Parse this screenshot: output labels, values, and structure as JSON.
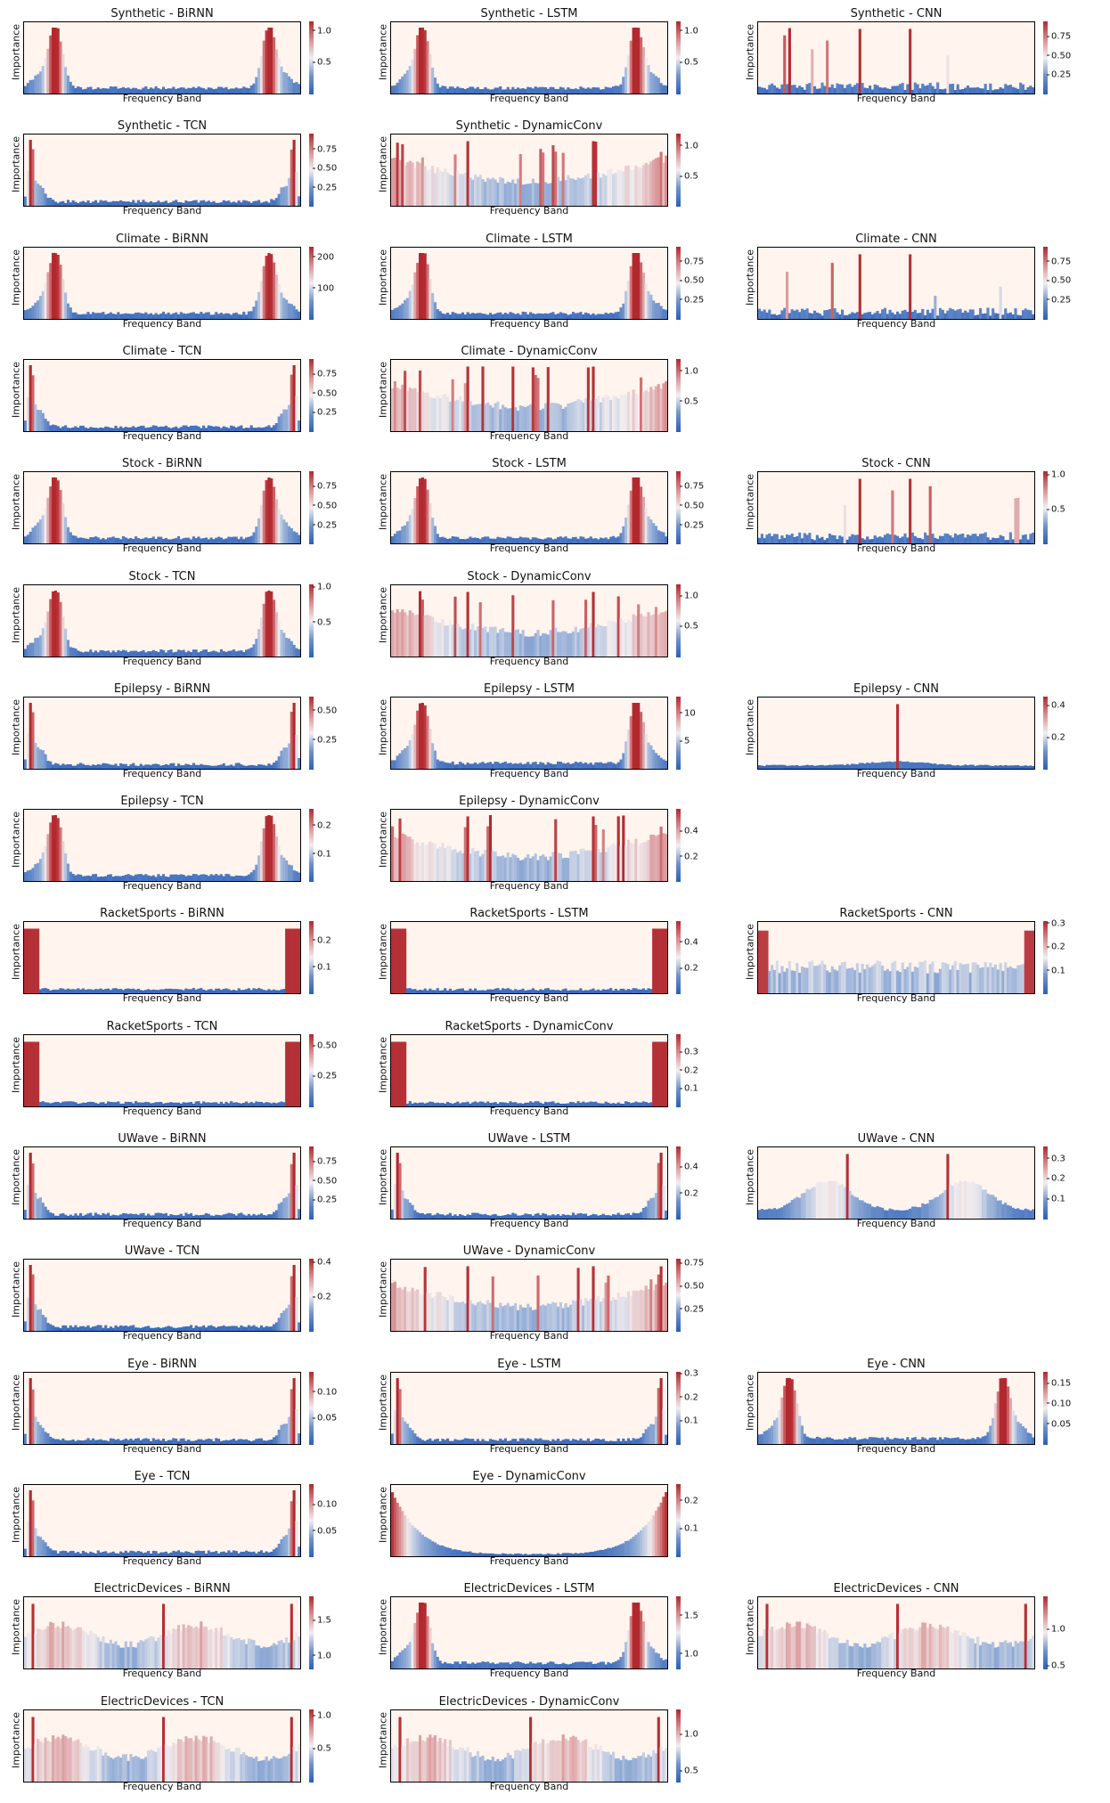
{
  "chart_data": [
    {
      "title": "Synthetic - BiRNN",
      "ylabel": "Importance",
      "xlabel": "Frequency Band",
      "type": "bar",
      "shape": "twin",
      "colorbar_ticks": [
        "1.0",
        "0.5"
      ],
      "tick_values": [
        1.0,
        0.5
      ],
      "cmax": 1.15
    },
    {
      "title": "Synthetic - LSTM",
      "ylabel": "Importance",
      "xlabel": "Frequency Band",
      "type": "bar",
      "shape": "twin",
      "colorbar_ticks": [
        "1.0",
        "0.5"
      ],
      "tick_values": [
        1.0,
        0.5
      ],
      "cmax": 1.15
    },
    {
      "title": "Synthetic - CNN",
      "ylabel": "Importance",
      "xlabel": "Frequency Band",
      "type": "bar",
      "shape": "spikes",
      "colorbar_ticks": [
        "0.75",
        "0.50",
        "0.25"
      ],
      "tick_values": [
        0.75,
        0.5,
        0.25
      ],
      "cmax": 0.95
    },
    {
      "title": "Synthetic - TCN",
      "ylabel": "Importance",
      "xlabel": "Frequency Band",
      "type": "bar",
      "shape": "edges",
      "colorbar_ticks": [
        "0.75",
        "0.50",
        "0.25"
      ],
      "tick_values": [
        0.75,
        0.5,
        0.25
      ],
      "cmax": 0.95
    },
    {
      "title": "Synthetic - DynamicConv",
      "ylabel": "Importance",
      "xlabel": "Frequency Band",
      "type": "bar",
      "shape": "bowl",
      "colorbar_ticks": [
        "1.0",
        "0.5"
      ],
      "tick_values": [
        1.0,
        0.5
      ],
      "cmax": 1.2
    },
    null,
    {
      "title": "Climate - BiRNN",
      "ylabel": "Importance",
      "xlabel": "Frequency Band",
      "type": "bar",
      "shape": "twin",
      "colorbar_ticks": [
        "200",
        "100"
      ],
      "tick_values": [
        200,
        100
      ],
      "cmax": 235
    },
    {
      "title": "Climate - LSTM",
      "ylabel": "Importance",
      "xlabel": "Frequency Band",
      "type": "bar",
      "shape": "twin",
      "colorbar_ticks": [
        "0.75",
        "0.50",
        "0.25"
      ],
      "tick_values": [
        0.75,
        0.5,
        0.25
      ],
      "cmax": 0.95
    },
    {
      "title": "Climate - CNN",
      "ylabel": "Importance",
      "xlabel": "Frequency Band",
      "type": "bar",
      "shape": "spikes",
      "colorbar_ticks": [
        "0.75",
        "0.50",
        "0.25"
      ],
      "tick_values": [
        0.75,
        0.5,
        0.25
      ],
      "cmax": 0.95
    },
    {
      "title": "Climate - TCN",
      "ylabel": "Importance",
      "xlabel": "Frequency Band",
      "type": "bar",
      "shape": "edges",
      "colorbar_ticks": [
        "0.75",
        "0.50",
        "0.25"
      ],
      "tick_values": [
        0.75,
        0.5,
        0.25
      ],
      "cmax": 0.95
    },
    {
      "title": "Climate - DynamicConv",
      "ylabel": "Importance",
      "xlabel": "Frequency Band",
      "type": "bar",
      "shape": "bowl",
      "colorbar_ticks": [
        "1.0",
        "0.5"
      ],
      "tick_values": [
        1.0,
        0.5
      ],
      "cmax": 1.2
    },
    null,
    {
      "title": "Stock - BiRNN",
      "ylabel": "Importance",
      "xlabel": "Frequency Band",
      "type": "bar",
      "shape": "twin",
      "colorbar_ticks": [
        "0.75",
        "0.50",
        "0.25"
      ],
      "tick_values": [
        0.75,
        0.5,
        0.25
      ],
      "cmax": 0.95
    },
    {
      "title": "Stock - LSTM",
      "ylabel": "Importance",
      "xlabel": "Frequency Band",
      "type": "bar",
      "shape": "twin",
      "colorbar_ticks": [
        "0.75",
        "0.50",
        "0.25"
      ],
      "tick_values": [
        0.75,
        0.5,
        0.25
      ],
      "cmax": 0.95
    },
    {
      "title": "Stock - CNN",
      "ylabel": "Importance",
      "xlabel": "Frequency Band",
      "type": "bar",
      "shape": "spikes",
      "colorbar_ticks": [
        "1.0",
        "0.5"
      ],
      "tick_values": [
        1.0,
        0.5
      ],
      "cmax": 1.05
    },
    {
      "title": "Stock - TCN",
      "ylabel": "Importance",
      "xlabel": "Frequency Band",
      "type": "bar",
      "shape": "twin",
      "colorbar_ticks": [
        "1.0",
        "0.5"
      ],
      "tick_values": [
        1.0,
        0.5
      ],
      "cmax": 1.05
    },
    {
      "title": "Stock - DynamicConv",
      "ylabel": "Importance",
      "xlabel": "Frequency Band",
      "type": "bar",
      "shape": "bowl",
      "colorbar_ticks": [
        "1.0",
        "0.5"
      ],
      "tick_values": [
        1.0,
        0.5
      ],
      "cmax": 1.2
    },
    null,
    {
      "title": "Epilepsy - BiRNN",
      "ylabel": "Importance",
      "xlabel": "Frequency Band",
      "type": "bar",
      "shape": "edges",
      "colorbar_ticks": [
        "0.50",
        "0.25"
      ],
      "tick_values": [
        0.5,
        0.25
      ],
      "cmax": 0.62
    },
    {
      "title": "Epilepsy - LSTM",
      "ylabel": "Importance",
      "xlabel": "Frequency Band",
      "type": "bar",
      "shape": "twin",
      "colorbar_ticks": [
        "10",
        "5"
      ],
      "tick_values": [
        10,
        5
      ],
      "cmax": 13
    },
    {
      "title": "Epilepsy - CNN",
      "ylabel": "Importance",
      "xlabel": "Frequency Band",
      "type": "bar",
      "shape": "center",
      "colorbar_ticks": [
        "0.4",
        "0.2"
      ],
      "tick_values": [
        0.4,
        0.2
      ],
      "cmax": 0.46
    },
    {
      "title": "Epilepsy - TCN",
      "ylabel": "Importance",
      "xlabel": "Frequency Band",
      "type": "bar",
      "shape": "twin",
      "colorbar_ticks": [
        "0.2",
        "0.1"
      ],
      "tick_values": [
        0.2,
        0.1
      ],
      "cmax": 0.26
    },
    {
      "title": "Epilepsy - DynamicConv",
      "ylabel": "Importance",
      "xlabel": "Frequency Band",
      "type": "bar",
      "shape": "bowl",
      "colorbar_ticks": [
        "0.4",
        "0.2"
      ],
      "tick_values": [
        0.4,
        0.2
      ],
      "cmax": 0.58
    },
    null,
    {
      "title": "RacketSports - BiRNN",
      "ylabel": "Importance",
      "xlabel": "Frequency Band",
      "type": "bar",
      "shape": "blocks",
      "colorbar_ticks": [
        "0.2",
        "0.1"
      ],
      "tick_values": [
        0.2,
        0.1
      ],
      "cmax": 0.27
    },
    {
      "title": "RacketSports - LSTM",
      "ylabel": "Importance",
      "xlabel": "Frequency Band",
      "type": "bar",
      "shape": "blocks",
      "colorbar_ticks": [
        "0.4",
        "0.2"
      ],
      "tick_values": [
        0.4,
        0.2
      ],
      "cmax": 0.56
    },
    {
      "title": "RacketSports - CNN",
      "ylabel": "Importance",
      "xlabel": "Frequency Band",
      "type": "bar",
      "shape": "blocks_mid",
      "colorbar_ticks": [
        "0.3",
        "0.2",
        "0.1"
      ],
      "tick_values": [
        0.3,
        0.2,
        0.1
      ],
      "cmax": 0.31
    },
    {
      "title": "RacketSports - TCN",
      "ylabel": "Importance",
      "xlabel": "Frequency Band",
      "type": "bar",
      "shape": "blocks",
      "colorbar_ticks": [
        "0.50",
        "0.25"
      ],
      "tick_values": [
        0.5,
        0.25
      ],
      "cmax": 0.6
    },
    {
      "title": "RacketSports - DynamicConv",
      "ylabel": "Importance",
      "xlabel": "Frequency Band",
      "type": "bar",
      "shape": "blocks",
      "colorbar_ticks": [
        "0.3",
        "0.2",
        "0.1"
      ],
      "tick_values": [
        0.3,
        0.2,
        0.1
      ],
      "cmax": 0.4
    },
    null,
    {
      "title": "UWave - BiRNN",
      "ylabel": "Importance",
      "xlabel": "Frequency Band",
      "type": "bar",
      "shape": "edges",
      "colorbar_ticks": [
        "0.75",
        "0.50",
        "0.25"
      ],
      "tick_values": [
        0.75,
        0.5,
        0.25
      ],
      "cmax": 0.95
    },
    {
      "title": "UWave - LSTM",
      "ylabel": "Importance",
      "xlabel": "Frequency Band",
      "type": "bar",
      "shape": "edges",
      "colorbar_ticks": [
        "0.4",
        "0.2"
      ],
      "tick_values": [
        0.4,
        0.2
      ],
      "cmax": 0.56
    },
    {
      "title": "UWave - CNN",
      "ylabel": "Importance",
      "xlabel": "Frequency Band",
      "type": "bar",
      "shape": "hills",
      "colorbar_ticks": [
        "0.3",
        "0.2",
        "0.1"
      ],
      "tick_values": [
        0.3,
        0.2,
        0.1
      ],
      "cmax": 0.36
    },
    {
      "title": "UWave - TCN",
      "ylabel": "Importance",
      "xlabel": "Frequency Band",
      "type": "bar",
      "shape": "edges",
      "colorbar_ticks": [
        "0.4",
        "0.2"
      ],
      "tick_values": [
        0.4,
        0.2
      ],
      "cmax": 0.42
    },
    {
      "title": "UWave - DynamicConv",
      "ylabel": "Importance",
      "xlabel": "Frequency Band",
      "type": "bar",
      "shape": "bowl",
      "colorbar_ticks": [
        "0.75",
        "0.50",
        "0.25"
      ],
      "tick_values": [
        0.75,
        0.5,
        0.25
      ],
      "cmax": 0.8
    },
    null,
    {
      "title": "Eye - BiRNN",
      "ylabel": "Importance",
      "xlabel": "Frequency Band",
      "type": "bar",
      "shape": "edges",
      "colorbar_ticks": [
        "0.10",
        "0.05"
      ],
      "tick_values": [
        0.1,
        0.05
      ],
      "cmax": 0.14
    },
    {
      "title": "Eye - LSTM",
      "ylabel": "Importance",
      "xlabel": "Frequency Band",
      "type": "bar",
      "shape": "edges",
      "colorbar_ticks": [
        "0.3",
        "0.2",
        "0.1"
      ],
      "tick_values": [
        0.3,
        0.2,
        0.1
      ],
      "cmax": 0.31
    },
    {
      "title": "Eye - CNN",
      "ylabel": "Importance",
      "xlabel": "Frequency Band",
      "type": "bar",
      "shape": "twin",
      "colorbar_ticks": [
        "0.15",
        "0.10",
        "0.05"
      ],
      "tick_values": [
        0.15,
        0.1,
        0.05
      ],
      "cmax": 0.18
    },
    {
      "title": "Eye - TCN",
      "ylabel": "Importance",
      "xlabel": "Frequency Band",
      "type": "bar",
      "shape": "edges",
      "colorbar_ticks": [
        "0.10",
        "0.05"
      ],
      "tick_values": [
        0.1,
        0.05
      ],
      "cmax": 0.14
    },
    {
      "title": "Eye - DynamicConv",
      "ylabel": "Importance",
      "xlabel": "Frequency Band",
      "type": "bar",
      "shape": "ushape",
      "colorbar_ticks": [
        "0.2",
        "0.1"
      ],
      "tick_values": [
        0.2,
        0.1
      ],
      "cmax": 0.26
    },
    null,
    {
      "title": "ElectricDevices - BiRNN",
      "ylabel": "Importance",
      "xlabel": "Frequency Band",
      "type": "bar",
      "shape": "plateau",
      "colorbar_ticks": [
        "1.5",
        "1.0"
      ],
      "tick_values": [
        1.5,
        1.0
      ],
      "cmin": 0.8,
      "cmax": 1.85
    },
    {
      "title": "ElectricDevices - LSTM",
      "ylabel": "Importance",
      "xlabel": "Frequency Band",
      "type": "bar",
      "shape": "twin",
      "colorbar_ticks": [
        "1.5",
        "1.0"
      ],
      "tick_values": [
        1.5,
        1.0
      ],
      "cmin": 0.8,
      "cmax": 1.75
    },
    {
      "title": "ElectricDevices - CNN",
      "ylabel": "Importance",
      "xlabel": "Frequency Band",
      "type": "bar",
      "shape": "plateau",
      "colorbar_ticks": [
        "1.0",
        "0.5"
      ],
      "tick_values": [
        1.0,
        0.5
      ],
      "cmin": 0.45,
      "cmax": 1.45
    },
    {
      "title": "ElectricDevices - TCN",
      "ylabel": "Importance",
      "xlabel": "Frequency Band",
      "type": "bar",
      "shape": "plateau",
      "colorbar_ticks": [
        "1.0",
        "0.5"
      ],
      "tick_values": [
        1.0,
        0.5
      ],
      "cmax": 1.1
    },
    {
      "title": "ElectricDevices - DynamicConv",
      "ylabel": "Importance",
      "xlabel": "Frequency Band",
      "type": "bar",
      "shape": "plateau",
      "colorbar_ticks": [
        "1.0",
        "0.5"
      ],
      "tick_values": [
        1.0,
        0.5
      ],
      "cmin": 0.35,
      "cmax": 1.35
    },
    null
  ]
}
